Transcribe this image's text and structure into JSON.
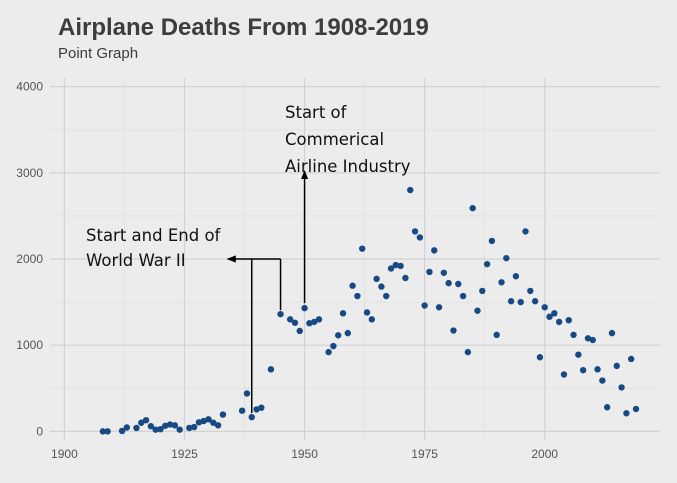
{
  "chart_data": {
    "type": "scatter",
    "title": "Airplane Deaths From 1908-2019",
    "subtitle": "Point Graph",
    "xlabel": "",
    "ylabel": "",
    "xlim": [
      1897,
      2024
    ],
    "ylim": [
      -100,
      4100
    ],
    "x_ticks": [
      1900,
      1925,
      1950,
      1975,
      2000
    ],
    "y_ticks": [
      0,
      1000,
      2000,
      3000,
      4000
    ],
    "grid": true,
    "legend": "none",
    "point_color": "#174a84",
    "points": [
      [
        1908,
        0
      ],
      [
        1909,
        0
      ],
      [
        1912,
        5
      ],
      [
        1913,
        45
      ],
      [
        1915,
        40
      ],
      [
        1916,
        100
      ],
      [
        1917,
        130
      ],
      [
        1918,
        60
      ],
      [
        1919,
        20
      ],
      [
        1920,
        25
      ],
      [
        1921,
        65
      ],
      [
        1922,
        80
      ],
      [
        1923,
        70
      ],
      [
        1924,
        20
      ],
      [
        1926,
        40
      ],
      [
        1927,
        50
      ],
      [
        1928,
        105
      ],
      [
        1929,
        120
      ],
      [
        1930,
        140
      ],
      [
        1931,
        100
      ],
      [
        1932,
        70
      ],
      [
        1933,
        195
      ],
      [
        1937,
        240
      ],
      [
        1938,
        440
      ],
      [
        1939,
        165
      ],
      [
        1940,
        255
      ],
      [
        1941,
        275
      ],
      [
        1943,
        720
      ],
      [
        1945,
        1360
      ],
      [
        1947,
        1300
      ],
      [
        1948,
        1260
      ],
      [
        1949,
        1165
      ],
      [
        1950,
        1430
      ],
      [
        1951,
        1255
      ],
      [
        1952,
        1270
      ],
      [
        1953,
        1300
      ],
      [
        1955,
        920
      ],
      [
        1956,
        990
      ],
      [
        1957,
        1115
      ],
      [
        1958,
        1370
      ],
      [
        1959,
        1140
      ],
      [
        1960,
        1690
      ],
      [
        1961,
        1570
      ],
      [
        1962,
        2120
      ],
      [
        1963,
        1380
      ],
      [
        1964,
        1300
      ],
      [
        1965,
        1770
      ],
      [
        1966,
        1680
      ],
      [
        1967,
        1570
      ],
      [
        1968,
        1890
      ],
      [
        1969,
        1930
      ],
      [
        1970,
        1920
      ],
      [
        1971,
        1780
      ],
      [
        1972,
        2800
      ],
      [
        1973,
        2320
      ],
      [
        1974,
        2250
      ],
      [
        1975,
        1460
      ],
      [
        1976,
        1850
      ],
      [
        1977,
        2100
      ],
      [
        1978,
        1440
      ],
      [
        1979,
        1840
      ],
      [
        1980,
        1720
      ],
      [
        1981,
        1170
      ],
      [
        1982,
        1710
      ],
      [
        1983,
        1570
      ],
      [
        1984,
        920
      ],
      [
        1985,
        2590
      ],
      [
        1986,
        1400
      ],
      [
        1987,
        1630
      ],
      [
        1988,
        1940
      ],
      [
        1989,
        2210
      ],
      [
        1990,
        1120
      ],
      [
        1991,
        1730
      ],
      [
        1992,
        2010
      ],
      [
        1993,
        1510
      ],
      [
        1994,
        1800
      ],
      [
        1995,
        1500
      ],
      [
        1996,
        2320
      ],
      [
        1997,
        1630
      ],
      [
        1998,
        1510
      ],
      [
        1999,
        860
      ],
      [
        2000,
        1440
      ],
      [
        2001,
        1330
      ],
      [
        2002,
        1370
      ],
      [
        2003,
        1270
      ],
      [
        2004,
        660
      ],
      [
        2005,
        1290
      ],
      [
        2006,
        1120
      ],
      [
        2007,
        890
      ],
      [
        2008,
        710
      ],
      [
        2009,
        1080
      ],
      [
        2010,
        1060
      ],
      [
        2011,
        720
      ],
      [
        2012,
        590
      ],
      [
        2013,
        280
      ],
      [
        2014,
        1140
      ],
      [
        2015,
        760
      ],
      [
        2016,
        510
      ],
      [
        2017,
        210
      ],
      [
        2018,
        840
      ],
      [
        2019,
        260
      ]
    ],
    "annotations": [
      {
        "id": "ww2",
        "text_lines": [
          "Start and End of",
          "World War II"
        ],
        "arrow_to_year": 1934,
        "arrow_y": 2000,
        "brackets": [
          [
            1939,
            165
          ],
          [
            1945,
            1360
          ]
        ]
      },
      {
        "id": "airline",
        "text_lines": [
          "Start of",
          "Commerical",
          "Airline Industry"
        ],
        "arrow_to_year": 1950,
        "arrow_tip_y": 3020,
        "arrow_base_y": 1430
      }
    ]
  }
}
